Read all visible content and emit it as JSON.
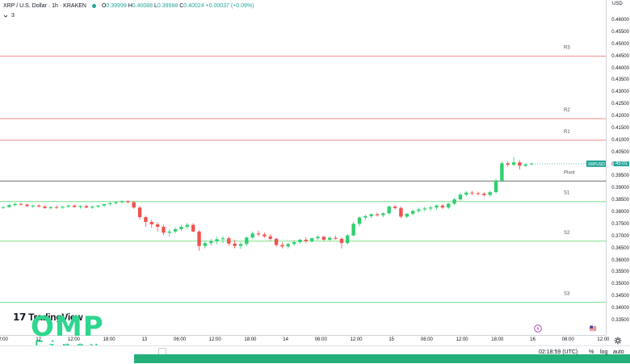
{
  "legend": {
    "title": "XRP / U.S. Dollar · 1h · KRAKEN",
    "o_label": "O",
    "o": "0.39999",
    "h_label": "H",
    "h": "0.40088",
    "l_label": "L",
    "l": "0.39988",
    "c_label": "C",
    "c": "0.40024",
    "change": "+0.00037 (+0.09%)",
    "indicators_count": "3",
    "status_color": "#26a69a"
  },
  "price_axis": {
    "currency": "USD",
    "ticks": [
      "0.46000",
      "0.45500",
      "0.45000",
      "0.44500",
      "0.44000",
      "0.43500",
      "0.43000",
      "0.42500",
      "0.42000",
      "0.41500",
      "0.41000",
      "0.40500",
      "0.40000",
      "0.39500",
      "0.39000",
      "0.38500",
      "0.38000",
      "0.37500",
      "0.37000",
      "0.36500",
      "0.36000",
      "0.35500",
      "0.35000",
      "0.34500",
      "0.34000",
      "0.33500"
    ],
    "last_price_badge": "XRPUSD",
    "last_price": "0.40024",
    "last_price_short": "45:01"
  },
  "time_axis": {
    "ticks": [
      "00",
      "12",
      "13",
      "12:00",
      "18:00",
      "13",
      "06:00",
      "12:00",
      "18:00",
      "14",
      "06:00",
      "12:00",
      "18:00",
      "15",
      "06:00",
      "12:00",
      "18:00",
      "16",
      "06:00",
      "12:00"
    ],
    "labels": [
      "2:00",
      "12",
      "12:00",
      "18:00",
      "13",
      "06:00",
      "12:00",
      "18:00",
      "14",
      "06:00",
      "12:00",
      "15",
      "06:00",
      "12:00",
      "18:00",
      "16",
      "06:00",
      "12:00"
    ]
  },
  "pivot_levels": [
    {
      "name": "R3",
      "price": 0.445,
      "color": "#f28b8b"
    },
    {
      "name": "R2",
      "price": 0.419,
      "color": "#f28b8b"
    },
    {
      "name": "R1",
      "price": 0.41,
      "color": "#f28b8b"
    },
    {
      "name": "Pivot",
      "price": 0.393,
      "color": "#8a8a8a"
    },
    {
      "name": "S1",
      "price": 0.3845,
      "color": "#7fe08a"
    },
    {
      "name": "S2",
      "price": 0.368,
      "color": "#7fe08a"
    },
    {
      "name": "S3",
      "price": 0.3425,
      "color": "#7fe08a"
    }
  ],
  "colors": {
    "up": "#26a69a",
    "down": "#ef5350",
    "up_candle": "#2ecf6f",
    "down_candle": "#ef5350",
    "badge_bg": "#26a69a",
    "brand": "#2ed68e"
  },
  "candles": [
    [
      0.382,
      0.3825,
      0.3815,
      0.3822
    ],
    [
      0.3822,
      0.3835,
      0.3818,
      0.383
    ],
    [
      0.383,
      0.384,
      0.3825,
      0.3835
    ],
    [
      0.3835,
      0.384,
      0.3828,
      0.3832
    ],
    [
      0.3832,
      0.3836,
      0.3822,
      0.3826
    ],
    [
      0.3826,
      0.3832,
      0.3818,
      0.3828
    ],
    [
      0.3828,
      0.3834,
      0.382,
      0.3824
    ],
    [
      0.3824,
      0.383,
      0.3815,
      0.3818
    ],
    [
      0.3818,
      0.3826,
      0.3812,
      0.3822
    ],
    [
      0.3822,
      0.3828,
      0.3815,
      0.382
    ],
    [
      0.382,
      0.3826,
      0.3814,
      0.3824
    ],
    [
      0.3824,
      0.3832,
      0.3818,
      0.3828
    ],
    [
      0.3828,
      0.3834,
      0.382,
      0.3822
    ],
    [
      0.3822,
      0.383,
      0.3816,
      0.3826
    ],
    [
      0.3826,
      0.3832,
      0.3818,
      0.382
    ],
    [
      0.382,
      0.3828,
      0.3814,
      0.3824
    ],
    [
      0.3824,
      0.383,
      0.3818,
      0.3828
    ],
    [
      0.3828,
      0.3836,
      0.3822,
      0.3834
    ],
    [
      0.3834,
      0.3842,
      0.3828,
      0.3838
    ],
    [
      0.3838,
      0.3846,
      0.3832,
      0.3842
    ],
    [
      0.3842,
      0.385,
      0.3836,
      0.3846
    ],
    [
      0.3846,
      0.385,
      0.3838,
      0.3842
    ],
    [
      0.3842,
      0.3848,
      0.3815,
      0.382
    ],
    [
      0.382,
      0.3826,
      0.377,
      0.378
    ],
    [
      0.378,
      0.3786,
      0.374,
      0.376
    ],
    [
      0.376,
      0.377,
      0.3735,
      0.375
    ],
    [
      0.375,
      0.376,
      0.372,
      0.374
    ],
    [
      0.374,
      0.3748,
      0.3705,
      0.3715
    ],
    [
      0.3715,
      0.373,
      0.37,
      0.372
    ],
    [
      0.372,
      0.3738,
      0.3712,
      0.373
    ],
    [
      0.373,
      0.3748,
      0.3722,
      0.374
    ],
    [
      0.374,
      0.3756,
      0.373,
      0.3748
    ],
    [
      0.3748,
      0.3755,
      0.3718,
      0.372
    ],
    [
      0.372,
      0.3726,
      0.364,
      0.366
    ],
    [
      0.366,
      0.368,
      0.365,
      0.3672
    ],
    [
      0.3672,
      0.369,
      0.366,
      0.368
    ],
    [
      0.368,
      0.3698,
      0.3668,
      0.3688
    ],
    [
      0.3688,
      0.37,
      0.3672,
      0.3692
    ],
    [
      0.3692,
      0.37,
      0.366,
      0.367
    ],
    [
      0.367,
      0.3686,
      0.365,
      0.366
    ],
    [
      0.366,
      0.3676,
      0.3648,
      0.3668
    ],
    [
      0.3668,
      0.37,
      0.366,
      0.3695
    ],
    [
      0.3695,
      0.372,
      0.3688,
      0.3712
    ],
    [
      0.3712,
      0.3724,
      0.37,
      0.3708
    ],
    [
      0.3708,
      0.3716,
      0.3694,
      0.37
    ],
    [
      0.37,
      0.371,
      0.3682,
      0.369
    ],
    [
      0.369,
      0.3694,
      0.3656,
      0.3664
    ],
    [
      0.3664,
      0.3676,
      0.365,
      0.3658
    ],
    [
      0.3658,
      0.3674,
      0.365,
      0.3668
    ],
    [
      0.3668,
      0.3684,
      0.366,
      0.3676
    ],
    [
      0.3676,
      0.369,
      0.367,
      0.3686
    ],
    [
      0.3686,
      0.3696,
      0.3672,
      0.368
    ],
    [
      0.368,
      0.3696,
      0.3674,
      0.3692
    ],
    [
      0.3692,
      0.3704,
      0.3684,
      0.3698
    ],
    [
      0.3698,
      0.3704,
      0.368,
      0.3686
    ],
    [
      0.3686,
      0.37,
      0.368,
      0.3694
    ],
    [
      0.3694,
      0.3702,
      0.3686,
      0.369
    ],
    [
      0.369,
      0.3696,
      0.365,
      0.3672
    ],
    [
      0.3672,
      0.371,
      0.3666,
      0.3704
    ],
    [
      0.3704,
      0.376,
      0.37,
      0.3752
    ],
    [
      0.3752,
      0.3784,
      0.3742,
      0.3778
    ],
    [
      0.3778,
      0.379,
      0.3768,
      0.3784
    ],
    [
      0.3784,
      0.3796,
      0.3776,
      0.3792
    ],
    [
      0.3792,
      0.38,
      0.3782,
      0.3788
    ],
    [
      0.3788,
      0.38,
      0.378,
      0.3796
    ],
    [
      0.3796,
      0.383,
      0.379,
      0.3824
    ],
    [
      0.3824,
      0.3832,
      0.3812,
      0.3818
    ],
    [
      0.3818,
      0.3824,
      0.3776,
      0.3782
    ],
    [
      0.3782,
      0.3798,
      0.3776,
      0.3794
    ],
    [
      0.3794,
      0.3812,
      0.3788,
      0.3806
    ],
    [
      0.3806,
      0.3818,
      0.3798,
      0.3812
    ],
    [
      0.3812,
      0.3824,
      0.3804,
      0.3816
    ],
    [
      0.3816,
      0.3828,
      0.3806,
      0.382
    ],
    [
      0.382,
      0.3834,
      0.3812,
      0.3828
    ],
    [
      0.3828,
      0.3834,
      0.3814,
      0.382
    ],
    [
      0.382,
      0.384,
      0.3814,
      0.3836
    ],
    [
      0.3836,
      0.386,
      0.383,
      0.3854
    ],
    [
      0.3854,
      0.388,
      0.3848,
      0.3874
    ],
    [
      0.3874,
      0.3888,
      0.3866,
      0.3882
    ],
    [
      0.3882,
      0.389,
      0.3872,
      0.388
    ],
    [
      0.388,
      0.3886,
      0.387,
      0.3878
    ],
    [
      0.3878,
      0.3884,
      0.3866,
      0.3872
    ],
    [
      0.3872,
      0.389,
      0.3866,
      0.3884
    ],
    [
      0.3884,
      0.394,
      0.3878,
      0.3932
    ],
    [
      0.3932,
      0.4012,
      0.3926,
      0.4004
    ],
    [
      0.4004,
      0.4012,
      0.399,
      0.3998
    ],
    [
      0.3998,
      0.403,
      0.3992,
      0.4008
    ],
    [
      0.4008,
      0.4016,
      0.3978,
      0.3994
    ],
    [
      0.3994,
      0.4004,
      0.3988,
      0.4
    ],
    [
      0.3999,
      0.40088,
      0.39988,
      0.40024
    ]
  ]
}
